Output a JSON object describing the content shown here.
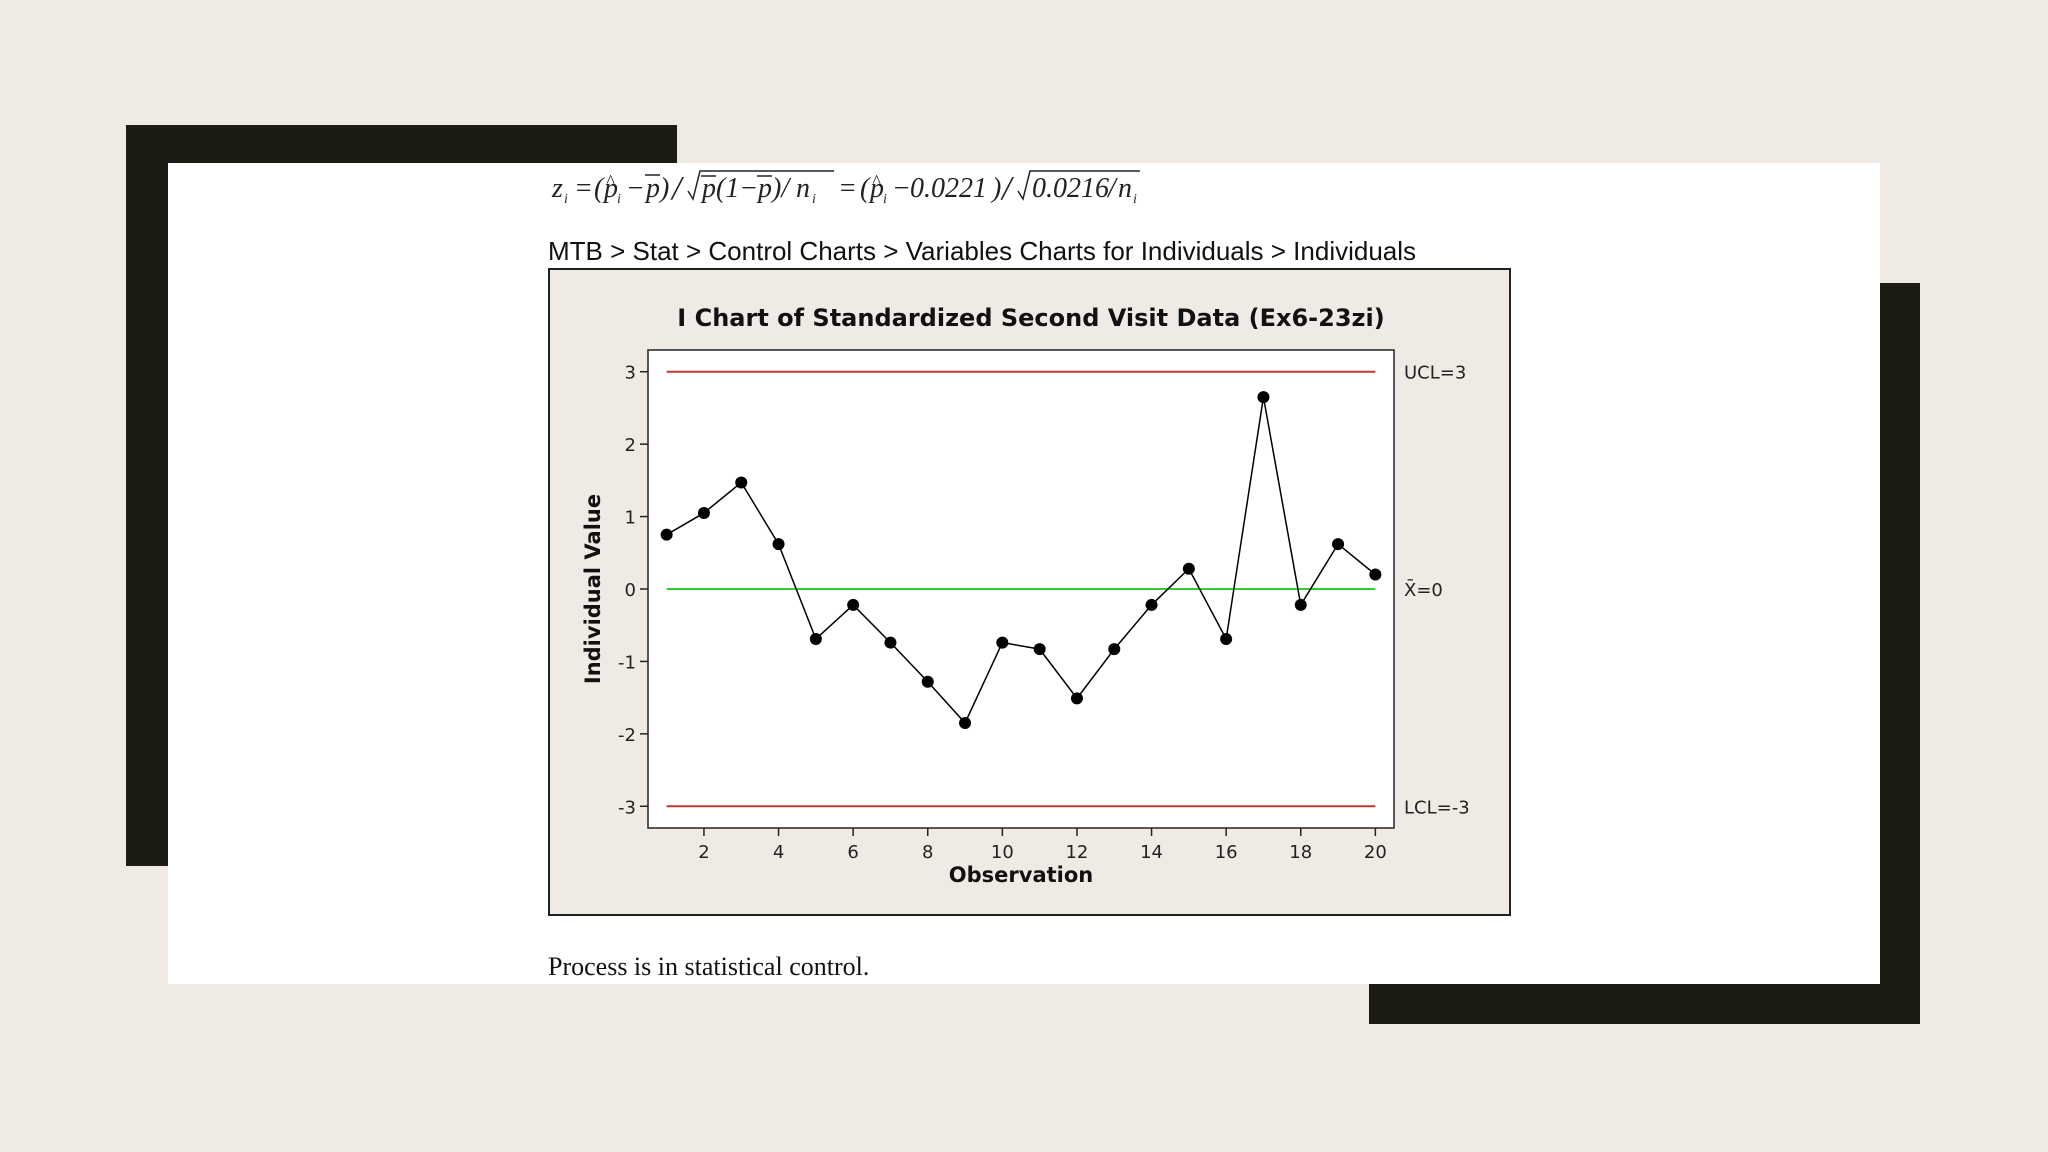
{
  "formula": {
    "lhs": "z",
    "mid": "0.0221",
    "den": "0.0216"
  },
  "menu_path": "MTB > Stat > Control Charts > Variables Charts for Individuals > Individuals",
  "conclusion": "Process is in statistical control.",
  "colors": {
    "background": "#efebe4",
    "frame": "#1c1c15",
    "control_limit": "#c0392b",
    "center_line": "#33cc33",
    "data": "#000000"
  },
  "chart_data": {
    "type": "line",
    "title": "I Chart of Standardized Second Visit Data (Ex6-23zi)",
    "xlabel": "Observation",
    "ylabel": "Individual Value",
    "xlim": [
      0.5,
      20.5
    ],
    "ylim": [
      -3.3,
      3.3
    ],
    "x_ticks": [
      2,
      4,
      6,
      8,
      10,
      12,
      14,
      16,
      18,
      20
    ],
    "y_ticks": [
      3,
      2,
      1,
      0,
      -1,
      -2,
      -3
    ],
    "x": [
      1,
      2,
      3,
      4,
      5,
      6,
      7,
      8,
      9,
      10,
      11,
      12,
      13,
      14,
      15,
      16,
      17,
      18,
      19,
      20
    ],
    "values": [
      0.75,
      1.05,
      1.47,
      0.62,
      -0.69,
      -0.22,
      -0.74,
      -1.28,
      -1.85,
      -0.74,
      -0.83,
      -1.51,
      -0.83,
      -0.22,
      0.28,
      -0.69,
      2.65,
      -0.22,
      0.62,
      0.2
    ],
    "limits": [
      {
        "name": "UCL",
        "value": 3,
        "label": "UCL=3"
      },
      {
        "name": "CL",
        "value": 0,
        "label": "X̄=0"
      },
      {
        "name": "LCL",
        "value": -3,
        "label": "LCL=-3"
      }
    ],
    "grid": false
  }
}
